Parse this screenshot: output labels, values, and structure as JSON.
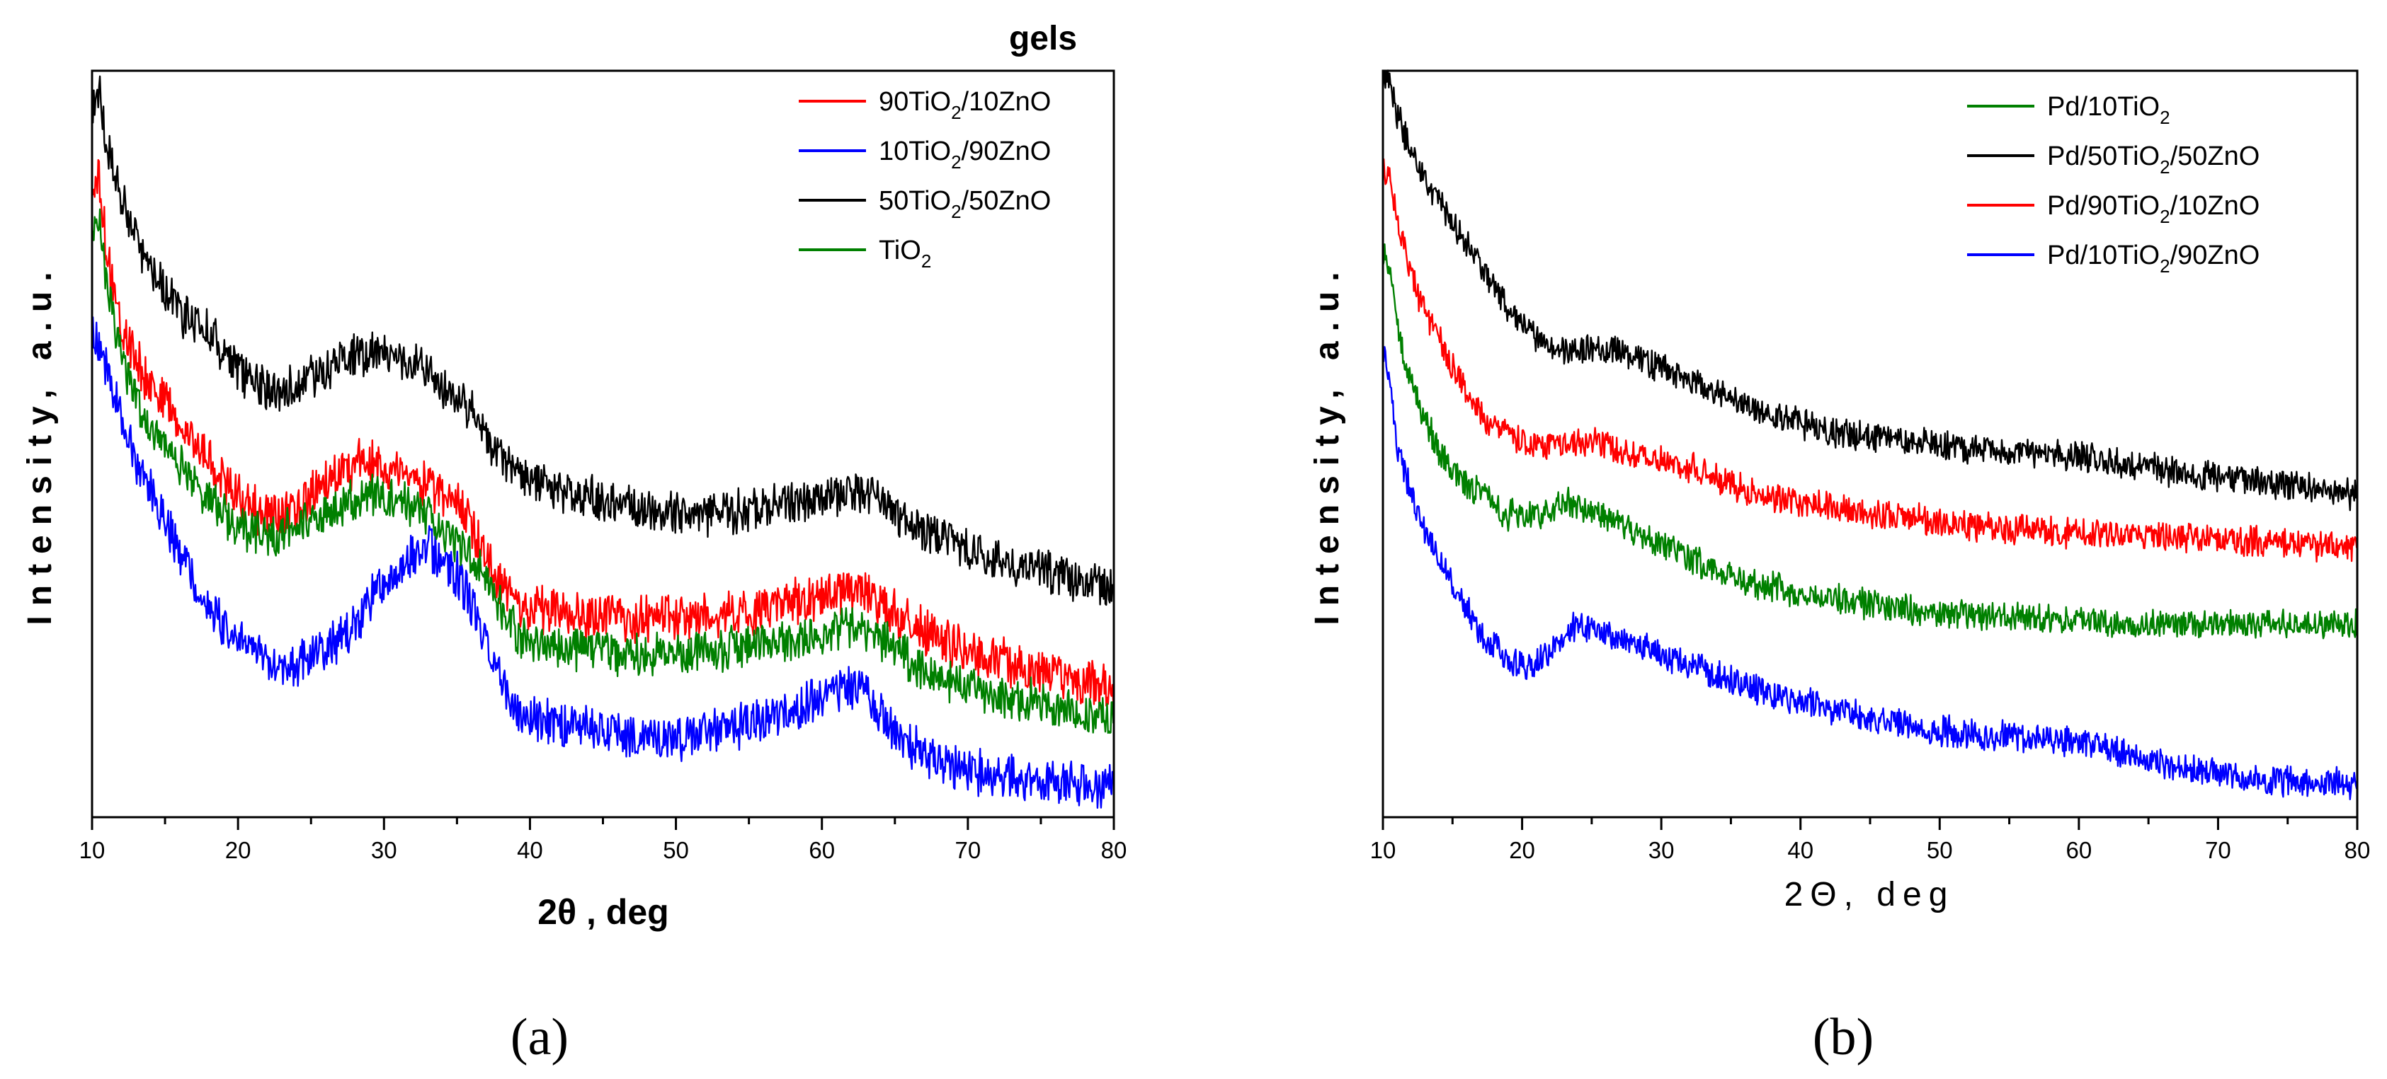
{
  "chart_data": [
    {
      "type": "line",
      "panel_label": "(a)",
      "title": "gels",
      "xlabel_main": "2θ",
      "xlabel_unit": " , deg",
      "ylabel": "Intensity, a.u.",
      "xlim": [
        10,
        80
      ],
      "ylim": [
        0,
        100
      ],
      "x_ticks": [
        10,
        20,
        30,
        40,
        50,
        60,
        70,
        80
      ],
      "y_ticks_shown": false,
      "legend_position": "top-right",
      "series": [
        {
          "name": "90TiO2/10ZnO",
          "label_parts": [
            "90TiO",
            "2",
            "/10ZnO"
          ],
          "color": "#ff0000",
          "x": [
            10,
            10.5,
            11,
            12,
            13,
            14,
            15,
            16,
            17,
            18,
            19,
            20,
            21,
            22,
            23,
            24,
            25,
            26,
            27,
            28,
            29,
            30,
            31,
            32,
            33,
            34,
            35,
            36,
            37,
            38,
            39,
            40,
            42,
            44,
            46,
            48,
            50,
            52,
            54,
            56,
            58,
            60,
            61,
            62,
            63,
            64,
            65,
            66,
            67,
            68,
            70,
            72,
            74,
            76,
            78,
            80
          ],
          "values": [
            84,
            86,
            76,
            66,
            61,
            58,
            56,
            52,
            50,
            48,
            45,
            43,
            41,
            40,
            40,
            41,
            43,
            45,
            46,
            47,
            47,
            47,
            46,
            45,
            44,
            43,
            42,
            39,
            34,
            30,
            28,
            27,
            26.5,
            26,
            26,
            25.5,
            25.5,
            26,
            26.5,
            27,
            28,
            29,
            29.5,
            30,
            29.5,
            28,
            26.5,
            25,
            24,
            23,
            21.5,
            20,
            19,
            18,
            17,
            16.5
          ],
          "noise": 2.8
        },
        {
          "name": "10TiO2/90ZnO",
          "label_parts": [
            "10TiO",
            "2",
            "/90ZnO"
          ],
          "color": "#0000ff",
          "x": [
            10,
            10.5,
            11,
            12,
            13,
            14,
            15,
            16,
            17,
            18,
            19,
            20,
            21,
            22,
            23,
            24,
            25,
            26,
            27,
            28,
            29,
            30,
            31,
            32,
            33,
            34,
            35,
            36,
            37,
            38,
            39,
            40,
            42,
            44,
            46,
            48,
            50,
            52,
            54,
            56,
            58,
            60,
            61,
            62,
            63,
            64,
            65,
            66,
            67,
            68,
            70,
            72,
            74,
            76,
            78,
            80
          ],
          "values": [
            66,
            64,
            60,
            53,
            47,
            43,
            39,
            35,
            31,
            28,
            25,
            23,
            21.5,
            20,
            19.5,
            19.5,
            20,
            21,
            23,
            25,
            28,
            31,
            33,
            35,
            35.5,
            34,
            32,
            28,
            22,
            17,
            13.5,
            12,
            11.5,
            10.5,
            10,
            9.5,
            9.5,
            10,
            11,
            12,
            13.5,
            15,
            16,
            16.5,
            15.5,
            13,
            10,
            8,
            7,
            6,
            5,
            4.5,
            4,
            3.5,
            3,
            2.5
          ],
          "noise": 2.8
        },
        {
          "name": "50TiO2/50ZnO",
          "label_parts": [
            "50TiO",
            "2",
            "/50ZnO"
          ],
          "color": "#000000",
          "x": [
            10,
            10.5,
            11,
            12,
            13,
            14,
            15,
            16,
            17,
            18,
            19,
            20,
            21,
            22,
            23,
            24,
            25,
            26,
            27,
            28,
            29,
            30,
            31,
            32,
            33,
            34,
            35,
            36,
            37,
            38,
            39,
            40,
            42,
            44,
            46,
            48,
            50,
            52,
            54,
            56,
            58,
            60,
            61,
            62,
            63,
            64,
            65,
            66,
            67,
            68,
            70,
            72,
            74,
            76,
            78,
            80
          ],
          "values": [
            96,
            98,
            91,
            84,
            78,
            74,
            71,
            68,
            66,
            65,
            62,
            60,
            58,
            57,
            57,
            58,
            59,
            60,
            61,
            62,
            62,
            62,
            61.5,
            61,
            60,
            58,
            56,
            54,
            51,
            48,
            46,
            44.5,
            43.5,
            42.5,
            41.5,
            40.5,
            40,
            40,
            40.5,
            41,
            42,
            42.5,
            43,
            43.5,
            43,
            42,
            40.5,
            39,
            38,
            37,
            35.5,
            34,
            33,
            32,
            31,
            30
          ],
          "noise": 2.6
        },
        {
          "name": "TiO2",
          "label_parts": [
            "TiO",
            "2",
            ""
          ],
          "color": "#008000",
          "x": [
            10,
            10.5,
            11,
            12,
            13,
            14,
            15,
            16,
            17,
            18,
            19,
            20,
            21,
            22,
            23,
            24,
            25,
            26,
            27,
            28,
            29,
            30,
            31,
            32,
            33,
            34,
            35,
            36,
            37,
            38,
            39,
            40,
            42,
            44,
            46,
            48,
            50,
            52,
            54,
            56,
            58,
            60,
            61,
            62,
            63,
            64,
            65,
            66,
            67,
            68,
            70,
            72,
            74,
            76,
            78,
            80
          ],
          "values": [
            78,
            80,
            72,
            62,
            56,
            52,
            50,
            47,
            45,
            42,
            40,
            38.5,
            37.5,
            37,
            37.5,
            38,
            39,
            40,
            41,
            42,
            42.5,
            42.5,
            42,
            41,
            40,
            38,
            36,
            34,
            31,
            27,
            24,
            23,
            22,
            21.5,
            21,
            21,
            21,
            21.5,
            22,
            22.5,
            23,
            23.5,
            24,
            24.5,
            24,
            23,
            21.5,
            20,
            19,
            18,
            16.5,
            15,
            14.5,
            14,
            13,
            12
          ],
          "noise": 2.6
        }
      ]
    },
    {
      "type": "line",
      "panel_label": "(b)",
      "title": "",
      "xlabel_main": "2Θ",
      "xlabel_unit": ", deg",
      "ylabel": "Intensity, a.u.",
      "xlim": [
        10,
        80
      ],
      "ylim": [
        0,
        100
      ],
      "x_ticks": [
        10,
        20,
        30,
        40,
        50,
        60,
        70,
        80
      ],
      "y_ticks_shown": false,
      "legend_position": "top-right",
      "series": [
        {
          "name": "Pd/10TiO2",
          "label_parts": [
            "Pd/10TiO",
            "2",
            ""
          ],
          "color": "#008000",
          "x": [
            10,
            10.5,
            11,
            12,
            13,
            14,
            15,
            16,
            17,
            18,
            19,
            20,
            21,
            22,
            23,
            24,
            25,
            26,
            27,
            28,
            30,
            32,
            34,
            36,
            38,
            40,
            42,
            44,
            46,
            48,
            50,
            55,
            60,
            65,
            70,
            75,
            80
          ],
          "values": [
            76,
            74,
            66,
            58,
            53,
            49,
            46,
            44,
            43,
            41,
            40,
            40,
            40,
            41,
            42,
            41,
            40,
            39.5,
            39,
            38,
            36,
            34,
            32.5,
            31,
            30,
            29,
            28.5,
            28,
            27.5,
            27,
            26.5,
            26,
            25.5,
            25,
            25,
            25,
            25
          ],
          "noise": 1.8
        },
        {
          "name": "Pd/50TiO2/50ZnO",
          "label_parts": [
            "Pd/50TiO",
            "2",
            "/50ZnO"
          ],
          "color": "#000000",
          "x": [
            10,
            10.5,
            11,
            12,
            13,
            14,
            15,
            16,
            17,
            18,
            19,
            20,
            21,
            22,
            23,
            24,
            25,
            26,
            27,
            28,
            30,
            32,
            34,
            36,
            38,
            40,
            42,
            44,
            46,
            48,
            50,
            55,
            60,
            65,
            70,
            75,
            80
          ],
          "values": [
            100,
            99,
            95,
            90,
            86,
            83,
            80,
            77,
            74,
            71,
            68,
            66,
            64,
            62.5,
            62,
            62.5,
            63,
            62.5,
            62,
            61.5,
            60,
            58.5,
            57,
            55,
            53.5,
            52.5,
            51.5,
            51,
            50.5,
            50,
            49.5,
            48.5,
            48,
            46.5,
            45,
            44,
            42.5
          ],
          "noise": 1.8
        },
        {
          "name": "Pd/90TiO2/10ZnO",
          "label_parts": [
            "Pd/90TiO",
            "2",
            "/10ZnO"
          ],
          "color": "#ff0000",
          "x": [
            10,
            10.5,
            11,
            12,
            13,
            14,
            15,
            16,
            17,
            18,
            19,
            20,
            21,
            22,
            23,
            24,
            25,
            26,
            27,
            28,
            30,
            32,
            34,
            36,
            38,
            40,
            42,
            44,
            46,
            48,
            50,
            55,
            60,
            65,
            70,
            75,
            80
          ],
          "values": [
            88,
            86,
            80,
            73,
            68,
            64,
            60,
            57,
            54,
            52,
            51,
            50,
            49.5,
            49.5,
            49.5,
            50,
            50,
            49.5,
            49,
            48.5,
            47.5,
            46.5,
            45,
            43.5,
            42.5,
            41.5,
            41,
            40.5,
            40,
            39.5,
            39,
            38,
            37.5,
            37,
            36.5,
            36,
            35.5
          ],
          "noise": 1.8
        },
        {
          "name": "Pd/10TiO2/90ZnO",
          "label_parts": [
            "Pd/10TiO",
            "2",
            "/90ZnO"
          ],
          "color": "#0000ff",
          "x": [
            10,
            10.5,
            11,
            12,
            13,
            14,
            15,
            16,
            17,
            18,
            19,
            20,
            21,
            22,
            23,
            24,
            25,
            26,
            27,
            28,
            30,
            32,
            34,
            36,
            38,
            40,
            42,
            44,
            46,
            48,
            50,
            55,
            60,
            65,
            70,
            75,
            80
          ],
          "values": [
            62,
            58,
            50,
            43,
            38,
            34,
            30,
            27,
            24,
            22,
            20,
            19,
            19.5,
            21,
            23,
            25,
            24.5,
            23.5,
            23,
            22.5,
            21,
            19.5,
            18,
            16.5,
            15.5,
            14.5,
            13.5,
            12.5,
            11.5,
            11,
            10.5,
            9.5,
            9,
            6.5,
            4.5,
            3.5,
            3
          ],
          "noise": 1.8
        }
      ]
    }
  ]
}
